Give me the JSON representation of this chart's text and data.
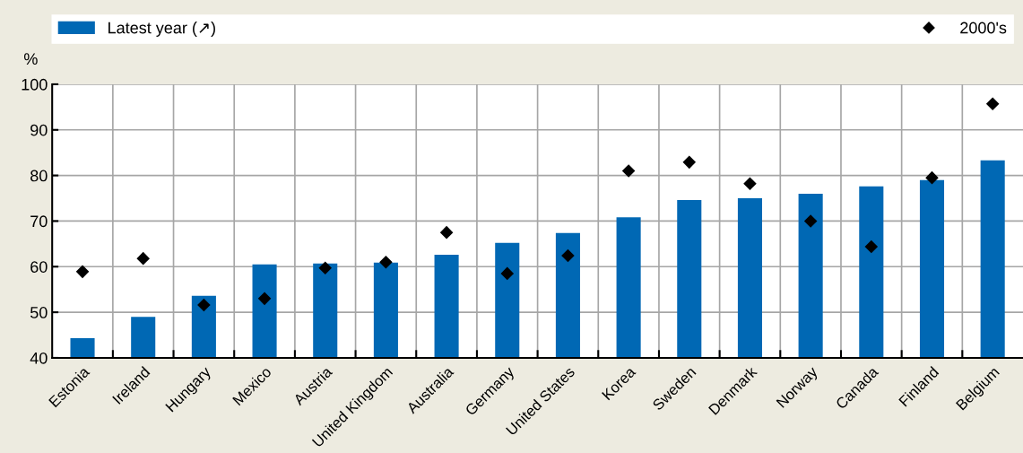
{
  "chart_data": {
    "type": "bar",
    "ylabel": "%",
    "categories": [
      "Estonia",
      "Ireland",
      "Hungary",
      "Mexico",
      "Austria",
      "United Kingdom",
      "Australia",
      "Germany",
      "United States",
      "Korea",
      "Sweden",
      "Denmark",
      "Norway",
      "Canada",
      "Finland",
      "Belgium"
    ],
    "series": [
      {
        "name": "Latest year (↗)",
        "color": "#0068b4",
        "values": [
          44.3,
          49.0,
          53.6,
          60.5,
          60.7,
          60.9,
          62.6,
          65.2,
          67.4,
          70.8,
          74.6,
          75.0,
          76.0,
          77.6,
          79.0,
          83.3
        ]
      },
      {
        "name": "2000's",
        "type": "scatter",
        "color": "#000000",
        "marker": "diamond",
        "values": [
          58.9,
          61.8,
          51.6,
          53.0,
          59.7,
          61.0,
          67.5,
          58.5,
          62.4,
          81.0,
          82.9,
          78.2,
          70.0,
          64.4,
          79.5,
          95.7
        ]
      }
    ],
    "ylim": [
      40,
      100
    ],
    "yticks": [
      40,
      50,
      60,
      70,
      80,
      90,
      100
    ],
    "grid": true,
    "legend": "top"
  }
}
